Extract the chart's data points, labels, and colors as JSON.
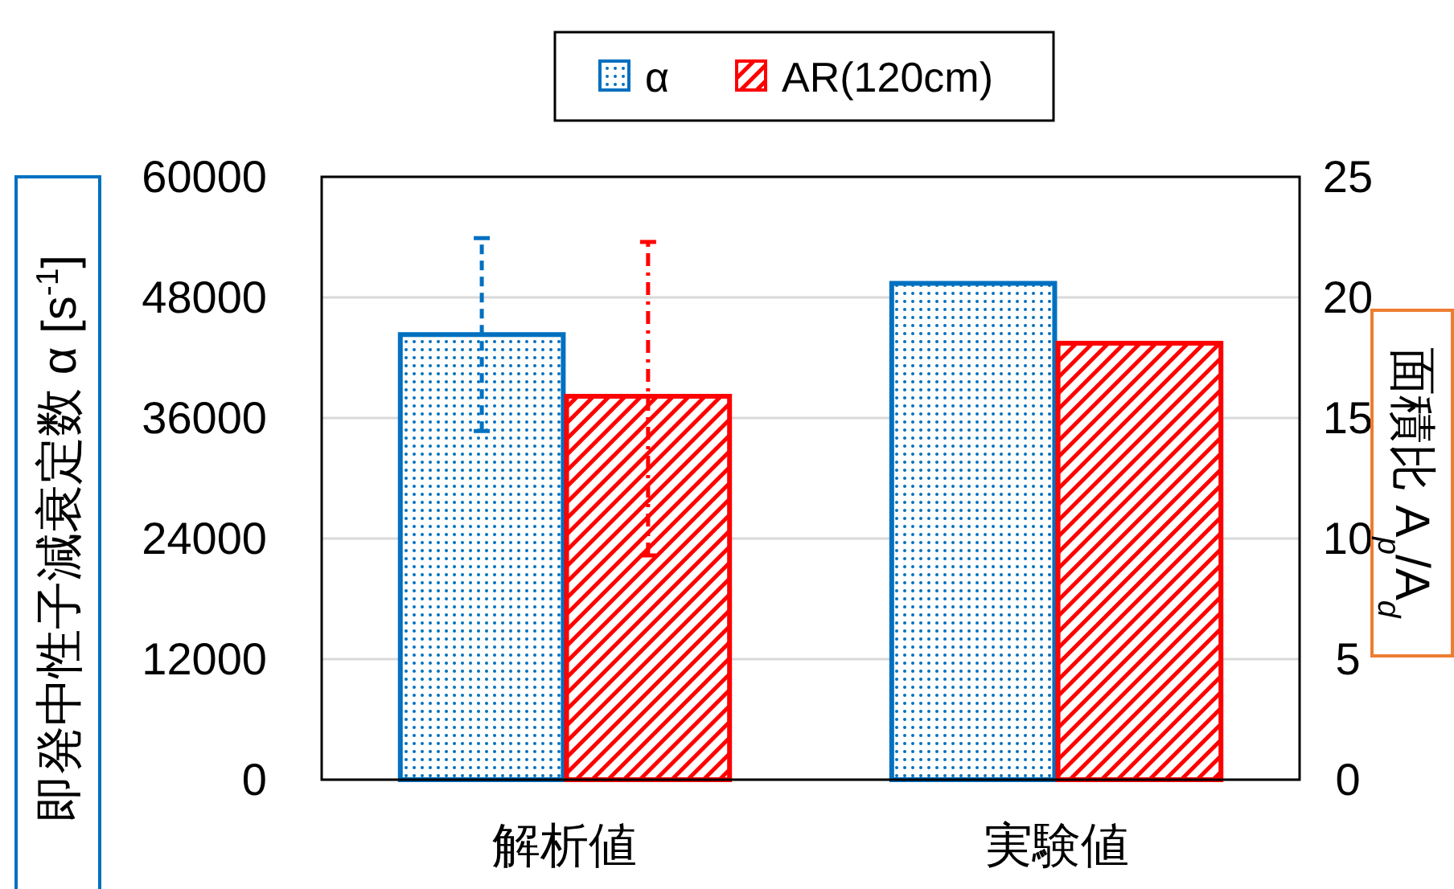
{
  "chart_data": {
    "type": "bar",
    "categories": [
      "解析値",
      "実験値"
    ],
    "ylabel": "即発中性子減衰定数 α [s$^{-1}$]",
    "y2label": "面積比 A$_{p}$/A$_{d}$",
    "ylim": [
      0,
      60000
    ],
    "yticks": [
      0,
      12000,
      24000,
      36000,
      48000,
      60000
    ],
    "y2lim": [
      0,
      25
    ],
    "y2ticks": [
      0,
      5,
      10,
      15,
      20,
      25
    ],
    "series": [
      {
        "name": "α",
        "color": "#0070c0",
        "values": [
          44300,
          49400
        ],
        "errors": [
          [
            34700,
            53900
          ],
          null
        ],
        "line_style": "dashed"
      },
      {
        "name": "AR(120cm)",
        "color": "#ff0000",
        "values": [
          15.9,
          18.1
        ],
        "errors": [
          [
            9.3,
            22.3
          ],
          null
        ],
        "axis": "y2",
        "line_style": "dashdot"
      }
    ],
    "grid": "y",
    "legend": "top"
  }
}
